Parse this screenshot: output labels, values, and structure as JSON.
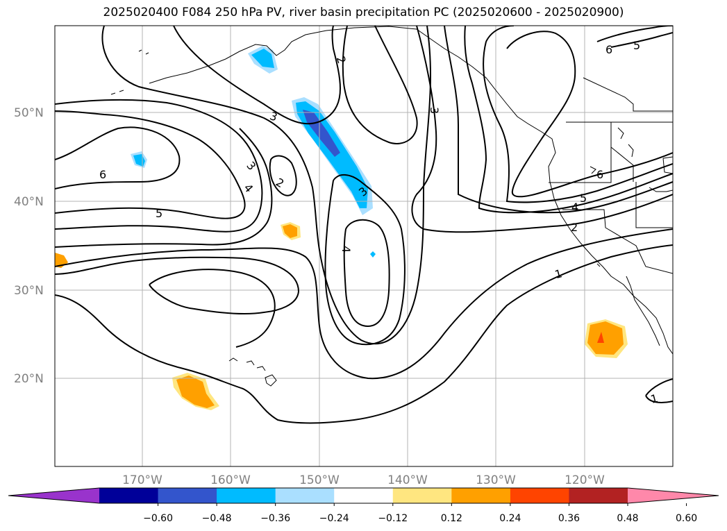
{
  "title": "2025020400 F084 250 hPa PV, river basin precipitation PC (2025020600 - 2025020900)",
  "lat_labels": [
    "50°N",
    "40°N",
    "30°N",
    "20°N"
  ],
  "lon_labels": [
    "170°W",
    "160°W",
    "150°W",
    "140°W",
    "130°W",
    "120°W"
  ],
  "contour_labels": [
    "2",
    "3",
    "6",
    "5",
    "3",
    "2",
    "6",
    "5",
    "4",
    "3",
    "4",
    "3",
    "6",
    "5",
    "4",
    "2",
    "1",
    "1"
  ],
  "colorbar": {
    "ticks": [
      "−0.60",
      "−0.48",
      "−0.36",
      "−0.24",
      "−0.12",
      "0.12",
      "0.24",
      "0.36",
      "0.48",
      "0.60"
    ],
    "colors": [
      "#9933cc",
      "#000099",
      "#3355cc",
      "#00bbff",
      "#aadfff",
      "#ffffff",
      "#ffe680",
      "#ffa000",
      "#ff4400",
      "#b22222",
      "#ff88aa"
    ]
  },
  "shading_colors": {
    "negative_light": "#aadfff",
    "negative_mid": "#00bbff",
    "negative_strong": "#3355cc",
    "positive_light": "#ffe680",
    "positive_mid": "#ffa000",
    "positive_strong": "#ff4400"
  }
}
